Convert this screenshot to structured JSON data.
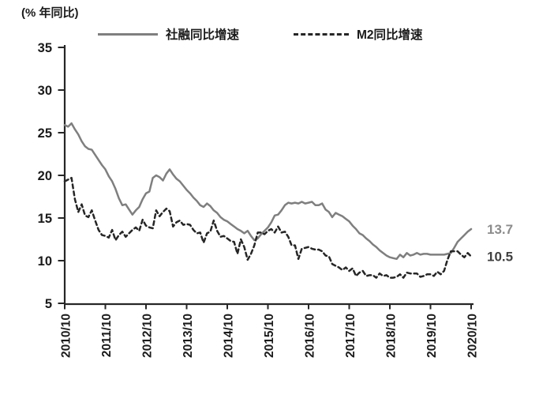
{
  "title": "(% 年同比)",
  "legend": [
    {
      "label": "社融同比增速",
      "style": "solid",
      "color": "#7f7f7f"
    },
    {
      "label": "M2同比增速",
      "style": "dashed",
      "color": "#262626"
    }
  ],
  "chart_data": {
    "type": "line",
    "title": "",
    "xlabel": "",
    "ylabel": "(% 年同比)",
    "grid": false,
    "legend_position": "top",
    "ylim": [
      5,
      35
    ],
    "y_ticks": [
      5,
      10,
      15,
      20,
      25,
      30,
      35
    ],
    "x_tick_labels": [
      "2010/10",
      "2011/10",
      "2012/10",
      "2013/10",
      "2014/10",
      "2015/10",
      "2016/10",
      "2017/10",
      "2018/10",
      "2019/10",
      "2020/10"
    ],
    "x_monthly_from": "2010/10",
    "x_monthly_to": "2020/10",
    "axis_color": "#262626",
    "series": [
      {
        "name": "社融同比增速",
        "style": "solid",
        "color": "#7f7f7f",
        "end_label": "13.7",
        "end_label_color": "#8c8c8c",
        "values": [
          25.9,
          25.7,
          26.1,
          25.4,
          24.8,
          24.0,
          23.4,
          23.1,
          23.0,
          22.4,
          21.8,
          21.2,
          20.7,
          19.9,
          19.3,
          18.4,
          17.3,
          16.5,
          16.6,
          16.0,
          15.4,
          15.9,
          16.3,
          17.2,
          17.9,
          18.1,
          19.7,
          20.0,
          19.8,
          19.4,
          20.2,
          20.7,
          20.1,
          19.6,
          19.3,
          18.8,
          18.3,
          17.9,
          17.4,
          17.0,
          16.5,
          16.3,
          16.7,
          16.4,
          15.9,
          15.6,
          15.1,
          14.8,
          14.6,
          14.3,
          14.0,
          13.7,
          13.5,
          13.2,
          13.5,
          12.9,
          12.4,
          12.6,
          13.1,
          13.5,
          13.9,
          14.5,
          15.3,
          15.4,
          15.9,
          16.5,
          16.8,
          16.7,
          16.8,
          16.7,
          16.9,
          16.7,
          16.8,
          16.9,
          16.5,
          16.5,
          16.7,
          16.0,
          15.7,
          15.1,
          15.6,
          15.4,
          15.2,
          14.9,
          14.6,
          14.1,
          13.7,
          13.2,
          13.0,
          12.6,
          12.3,
          11.9,
          11.6,
          11.2,
          10.9,
          10.6,
          10.4,
          10.3,
          10.2,
          10.7,
          10.4,
          10.9,
          10.6,
          10.7,
          10.9,
          10.7,
          10.8,
          10.8,
          10.7,
          10.7,
          10.7,
          10.7,
          10.7,
          10.8,
          10.9,
          11.5,
          12.2,
          12.6,
          13.0,
          13.4,
          13.7
        ]
      },
      {
        "name": "M2同比增速",
        "style": "dashed",
        "color": "#262626",
        "end_label": "10.5",
        "end_label_color": "#404040",
        "values": [
          19.3,
          19.5,
          19.7,
          17.2,
          15.7,
          16.6,
          15.3,
          15.1,
          15.9,
          14.7,
          13.6,
          13.0,
          12.9,
          12.7,
          13.6,
          12.4,
          13.0,
          13.4,
          12.8,
          13.2,
          13.6,
          13.9,
          13.5,
          14.8,
          14.1,
          13.9,
          13.8,
          15.9,
          15.2,
          15.7,
          16.1,
          15.8,
          14.0,
          14.5,
          14.7,
          14.2,
          14.3,
          14.2,
          13.6,
          13.2,
          13.3,
          12.1,
          13.2,
          13.4,
          14.7,
          13.5,
          12.8,
          12.9,
          12.6,
          12.3,
          12.2,
          10.8,
          12.5,
          11.6,
          10.1,
          10.8,
          11.8,
          13.3,
          13.3,
          13.1,
          13.5,
          13.7,
          13.3,
          14.0,
          13.3,
          13.4,
          12.8,
          11.8,
          11.8,
          10.2,
          11.4,
          11.5,
          11.6,
          11.4,
          11.3,
          11.3,
          11.1,
          10.6,
          10.5,
          9.6,
          9.4,
          9.2,
          8.9,
          9.2,
          8.8,
          9.1,
          8.2,
          8.6,
          8.8,
          8.2,
          8.3,
          8.3,
          8.0,
          8.5,
          8.2,
          8.3,
          8.0,
          8.0,
          8.1,
          8.4,
          8.0,
          8.6,
          8.5,
          8.5,
          8.5,
          8.1,
          8.2,
          8.4,
          8.4,
          8.2,
          8.7,
          8.4,
          8.8,
          10.1,
          11.1,
          11.1,
          11.1,
          10.7,
          10.4,
          10.9,
          10.5
        ]
      }
    ]
  }
}
